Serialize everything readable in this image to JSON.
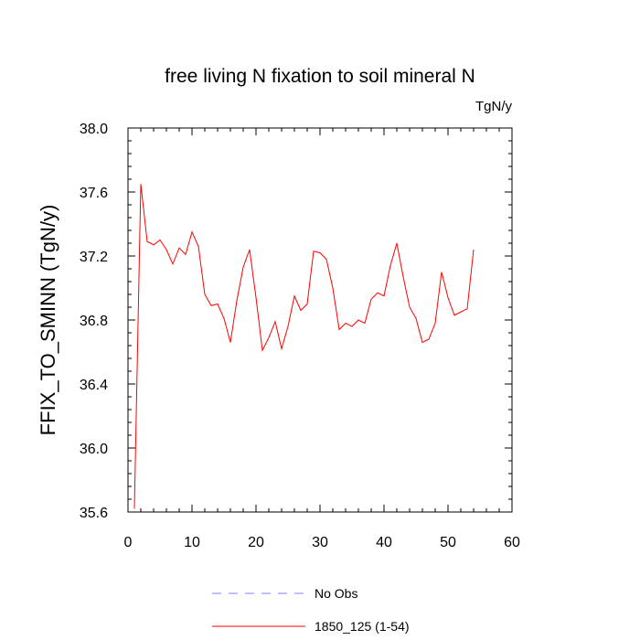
{
  "chart_data": {
    "type": "line",
    "title": "free living N fixation to soil mineral N",
    "units_label": "TgN/y",
    "ylabel": "FFIX_TO_SMINN  (TgN/y)",
    "xlabel": "",
    "xlim": [
      0,
      60
    ],
    "ylim": [
      35.6,
      38.0
    ],
    "x_ticks": [
      0,
      10,
      20,
      30,
      40,
      50,
      60
    ],
    "x_tick_labels": [
      "0",
      "10",
      "20",
      "30",
      "40",
      "50",
      "60"
    ],
    "y_ticks": [
      35.6,
      36.0,
      36.4,
      36.8,
      37.2,
      37.6,
      38.0
    ],
    "y_tick_labels": [
      "35.6",
      "36.0",
      "36.4",
      "36.8",
      "37.2",
      "37.6",
      "38.0"
    ],
    "grid": false,
    "legend_position": "bottom",
    "series": [
      {
        "name": "1850_125 (1-54)",
        "color": "#ff0000",
        "style": "solid",
        "x": [
          1,
          2,
          3,
          4,
          5,
          6,
          7,
          8,
          9,
          10,
          11,
          12,
          13,
          14,
          15,
          16,
          17,
          18,
          19,
          20,
          21,
          22,
          23,
          24,
          25,
          26,
          27,
          28,
          29,
          30,
          31,
          32,
          33,
          34,
          35,
          36,
          37,
          38,
          39,
          40,
          41,
          42,
          43,
          44,
          45,
          46,
          47,
          48,
          49,
          50,
          51,
          52,
          53,
          54
        ],
        "values": [
          35.62,
          37.65,
          37.29,
          37.27,
          37.3,
          37.24,
          37.15,
          37.25,
          37.21,
          37.35,
          37.26,
          36.96,
          36.89,
          36.9,
          36.81,
          36.66,
          36.92,
          37.13,
          37.24,
          36.94,
          36.61,
          36.69,
          36.79,
          36.62,
          36.76,
          36.95,
          36.86,
          36.9,
          37.23,
          37.22,
          37.18,
          37.0,
          36.74,
          36.78,
          36.76,
          36.8,
          36.78,
          36.93,
          36.97,
          36.95,
          37.14,
          37.28,
          37.07,
          36.88,
          36.81,
          36.66,
          36.68,
          36.78,
          37.1,
          36.94,
          36.83,
          36.85,
          36.87,
          37.24
        ]
      }
    ],
    "legend": [
      {
        "label": "No Obs",
        "color": "#8080ff",
        "style": "dashed"
      },
      {
        "label": "1850_125 (1-54)",
        "color": "#ff0000",
        "style": "solid"
      }
    ]
  }
}
